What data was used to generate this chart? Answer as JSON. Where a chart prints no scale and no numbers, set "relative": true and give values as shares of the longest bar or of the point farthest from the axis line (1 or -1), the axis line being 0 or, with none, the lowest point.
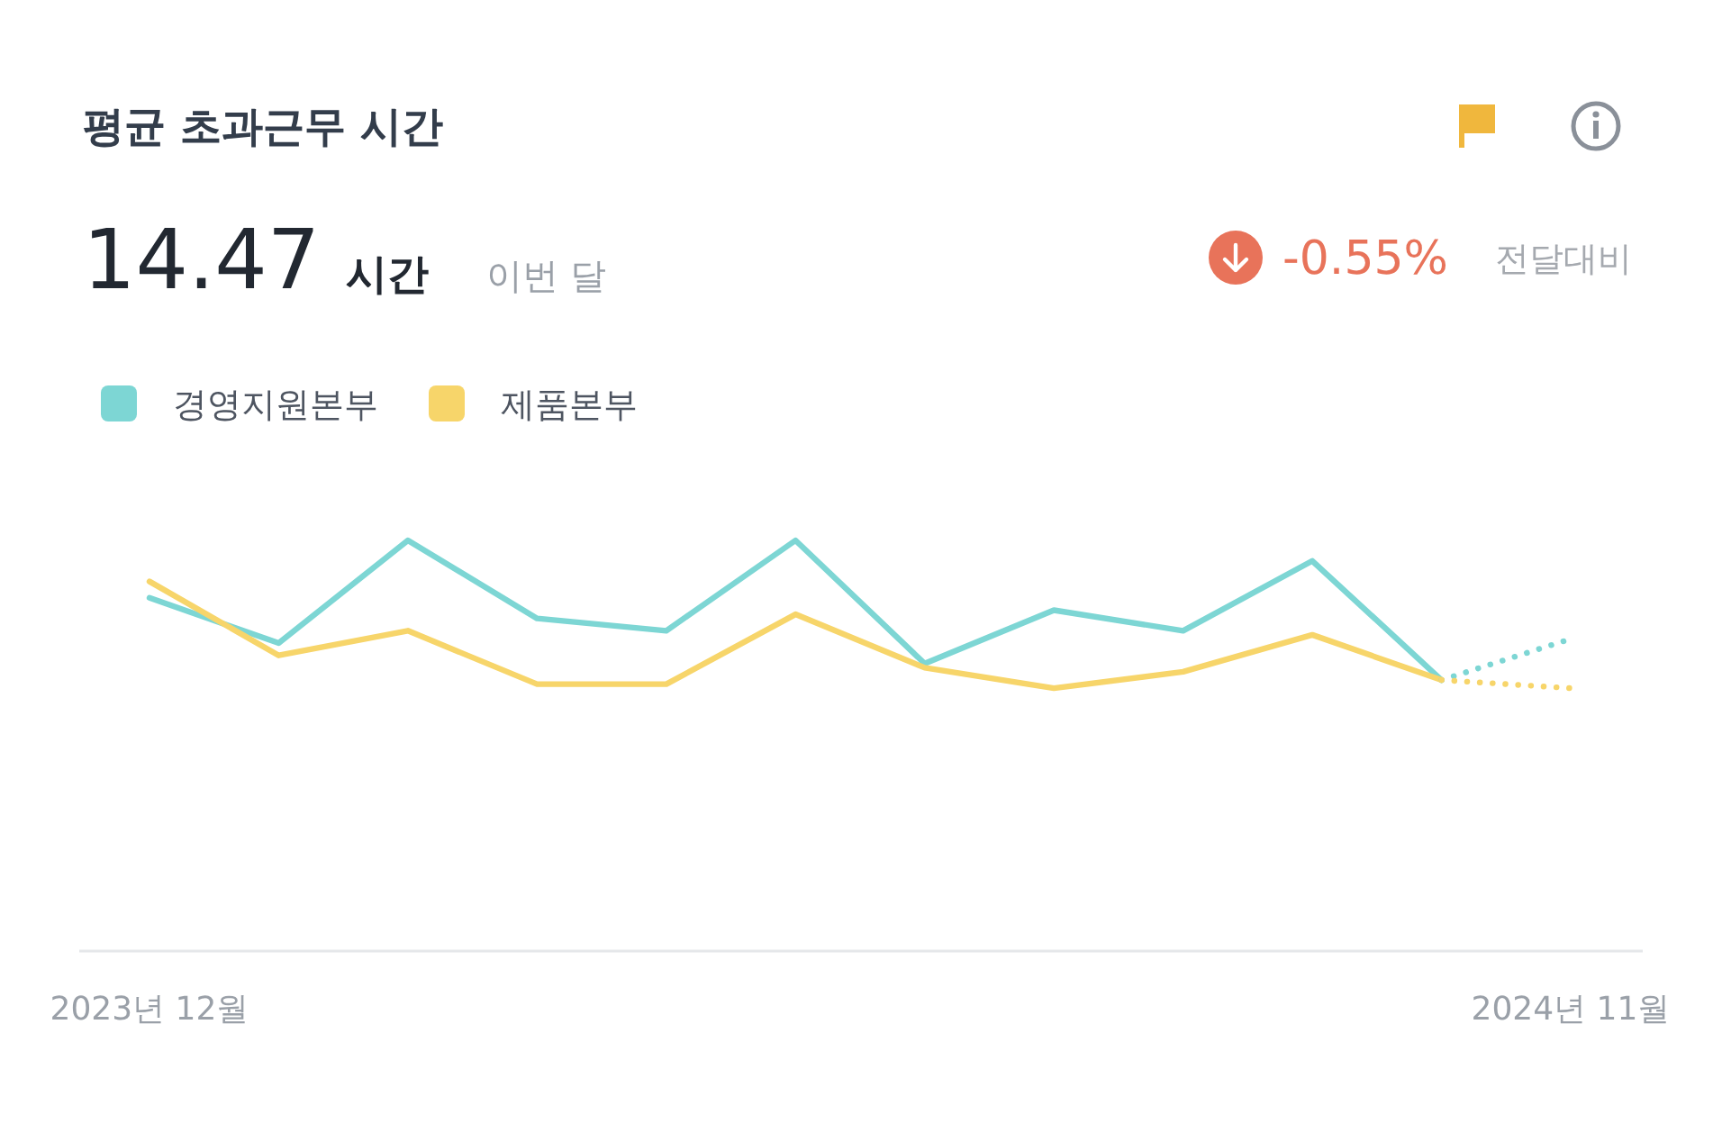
{
  "chart_data": {
    "type": "line",
    "title": "평균 초과근무 시간",
    "annotations": [
      "14.47",
      "시간",
      "이번 달",
      "-0.55%",
      "전달대비"
    ],
    "categories": [
      "2023년 12월",
      null,
      null,
      null,
      null,
      null,
      null,
      null,
      null,
      null,
      null,
      "2024년 11월"
    ],
    "relative": true,
    "legend": "top left",
    "grid": false,
    "marker": "none",
    "series": [
      {
        "name": "경영지원본부",
        "color": "#7dd6d4",
        "line_style": "solid",
        "values": [
          0.86,
          0.75,
          1.0,
          0.81,
          0.78,
          1.0,
          0.7,
          0.83,
          0.78,
          0.95,
          0.66,
          null
        ]
      },
      {
        "name": "제품본부",
        "color": "#f7d56a",
        "line_style": "solid",
        "values": [
          0.9,
          0.72,
          0.78,
          0.65,
          0.65,
          0.82,
          0.69,
          0.64,
          0.68,
          0.77,
          0.66,
          null
        ]
      },
      {
        "color": "#7dd6d4",
        "line_style": "dotted",
        "values": [
          null,
          null,
          null,
          null,
          null,
          null,
          null,
          null,
          null,
          null,
          0.66,
          0.76
        ]
      },
      {
        "color": "#f7d56a",
        "line_style": "dotted",
        "values": [
          null,
          null,
          null,
          null,
          null,
          null,
          null,
          null,
          null,
          null,
          0.66,
          0.64
        ]
      }
    ]
  }
}
